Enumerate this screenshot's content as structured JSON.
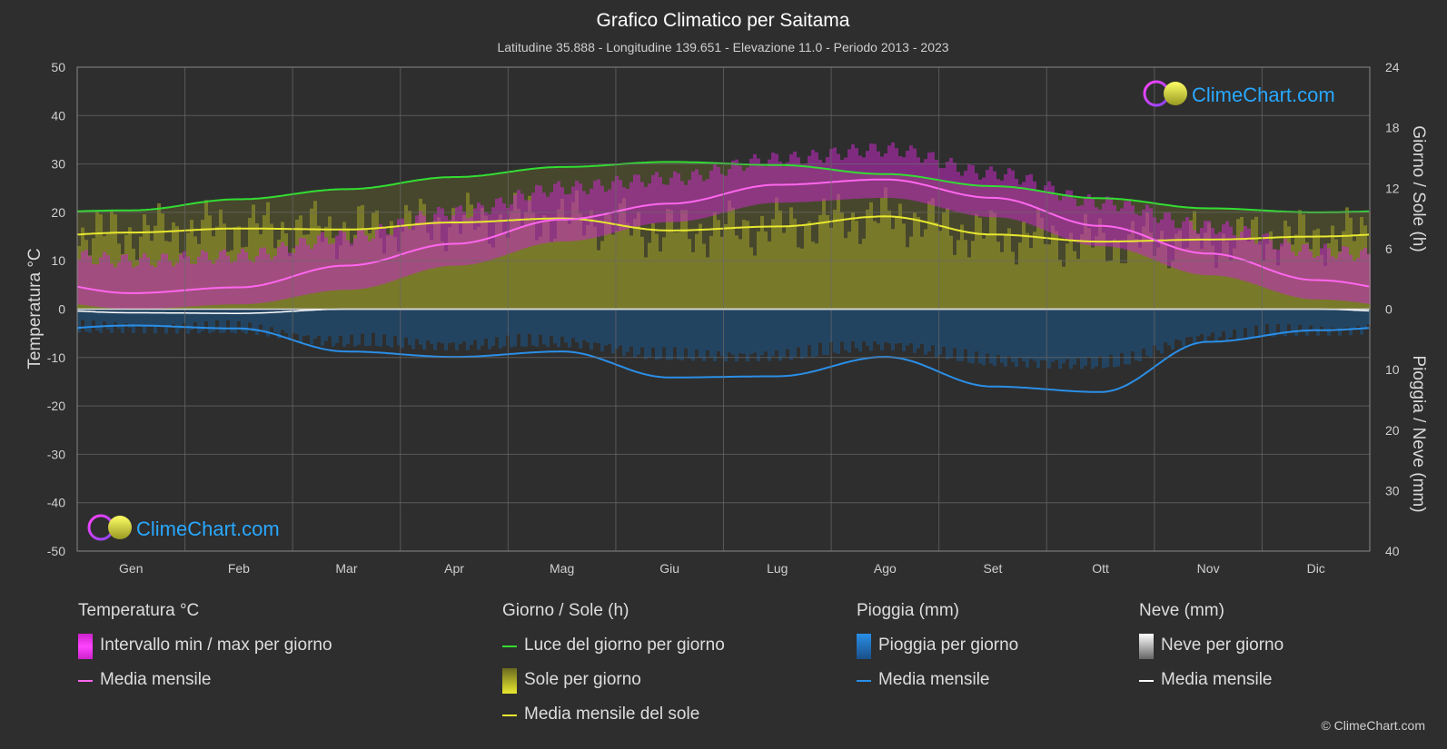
{
  "chart_data": {
    "type": "line",
    "title": "Grafico Climatico per Saitama",
    "subtitle": "Latitudine 35.888 - Longitudine 139.651 - Elevazione 11.0 - Periodo 2013 - 2023",
    "months": [
      "Gen",
      "Feb",
      "Mar",
      "Apr",
      "Mag",
      "Giu",
      "Lug",
      "Ago",
      "Set",
      "Ott",
      "Nov",
      "Dic"
    ],
    "left_axis": {
      "label": "Temperatura °C",
      "range": [
        -50,
        50
      ],
      "ticks": [
        "50",
        "40",
        "30",
        "20",
        "10",
        "0",
        "-10",
        "-20",
        "-30",
        "-40",
        "-50"
      ]
    },
    "right_axis_top": {
      "label": "Giorno / Sole (h)",
      "range": [
        0,
        24
      ],
      "ticks": [
        "24",
        "18",
        "12",
        "6",
        "0"
      ]
    },
    "right_axis_bottom": {
      "label": "Pioggia / Neve (mm)",
      "range": [
        0,
        40
      ],
      "ticks": [
        "10",
        "20",
        "30",
        "40"
      ]
    },
    "series": [
      {
        "name": "Luce del giorno per giorno",
        "unit": "h",
        "color": "#33dd33",
        "values": [
          9.8,
          10.9,
          11.9,
          13.1,
          14.1,
          14.6,
          14.3,
          13.4,
          12.2,
          11.0,
          10.0,
          9.6
        ]
      },
      {
        "name": "Media mensile del sole",
        "unit": "h",
        "color": "#e8e830",
        "values": [
          7.6,
          8.0,
          7.9,
          8.6,
          9.0,
          7.8,
          8.2,
          9.2,
          7.4,
          6.7,
          6.9,
          7.2
        ]
      },
      {
        "name": "Media mensile",
        "unit": "°C",
        "color": "#ff66ee",
        "values": [
          3.3,
          4.5,
          9.0,
          13.5,
          18.5,
          21.8,
          25.7,
          26.8,
          23.0,
          17.2,
          11.5,
          6.0
        ]
      },
      {
        "name": "Pioggia media mensile",
        "unit": "mm",
        "color": "#2a8fe8",
        "values": [
          2.7,
          3.2,
          7.0,
          7.9,
          7.0,
          11.3,
          11.1,
          7.9,
          12.8,
          13.7,
          5.4,
          3.5
        ]
      },
      {
        "name": "Neve media mensile",
        "unit": "mm",
        "color": "#ffffff",
        "values": [
          0.6,
          0.7,
          0.0,
          0.0,
          0.0,
          0.0,
          0.0,
          0.0,
          0.0,
          0.0,
          0.0,
          0.0
        ]
      }
    ],
    "temp_daily_range": {
      "min": [
        0,
        1,
        4,
        9,
        14,
        18,
        22,
        23,
        19,
        13,
        7,
        2
      ],
      "max": [
        10,
        11,
        15,
        20,
        25,
        27,
        31,
        33,
        28,
        22,
        17,
        12
      ]
    },
    "grid": true
  },
  "logo": {
    "text": "ClimeChart.com"
  },
  "legend": {
    "groups": [
      {
        "title": "Temperatura °C",
        "items": [
          {
            "label": "Intervallo min / max per giorno",
            "swatch": "box",
            "color": "#e020e0"
          },
          {
            "label": "Media mensile",
            "swatch": "line",
            "color": "#ff66ee"
          }
        ]
      },
      {
        "title": "Giorno / Sole (h)",
        "items": [
          {
            "label": "Luce del giorno per giorno",
            "swatch": "line",
            "color": "#33dd33"
          },
          {
            "label": "Sole per giorno",
            "swatch": "box",
            "color": "#d8d820"
          },
          {
            "label": "Media mensile del sole",
            "swatch": "line",
            "color": "#e8e830"
          }
        ]
      },
      {
        "title": "Pioggia (mm)",
        "items": [
          {
            "label": "Pioggia per giorno",
            "swatch": "box",
            "color": "#1e7fd8"
          },
          {
            "label": "Media mensile",
            "swatch": "line",
            "color": "#2a8fe8"
          }
        ]
      },
      {
        "title": "Neve (mm)",
        "items": [
          {
            "label": "Neve per giorno",
            "swatch": "box",
            "color": "#dddddd"
          },
          {
            "label": "Media mensile",
            "swatch": "line",
            "color": "#ffffff"
          }
        ]
      }
    ]
  },
  "copyright": "© ClimeChart.com"
}
